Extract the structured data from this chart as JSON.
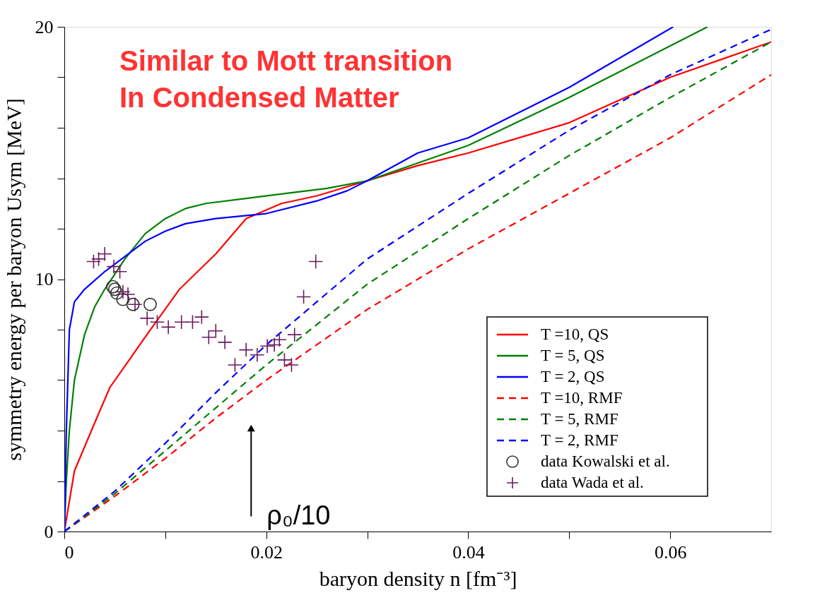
{
  "chart_data": {
    "type": "line",
    "xlabel": "baryon density n [fm⁻³]",
    "ylabel": "symmetry energy per baryon Usym  [MeV]",
    "xlim": [
      0,
      0.07
    ],
    "ylim": [
      0,
      20
    ],
    "xticks": [
      0,
      {
        "value": 0.01,
        "label": null
      },
      0.02,
      {
        "value": 0.03,
        "label": null
      },
      0.04,
      {
        "value": 0.05,
        "label": null
      },
      0.06
    ],
    "yticks": [
      0,
      {
        "value": 2,
        "label": null
      },
      {
        "value": 4,
        "label": null
      },
      {
        "value": 6,
        "label": null
      },
      {
        "value": 8,
        "label": null
      },
      10,
      {
        "value": 12,
        "label": null
      },
      {
        "value": 14,
        "label": null
      },
      {
        "value": 16,
        "label": null
      },
      {
        "value": 18,
        "label": null
      },
      20
    ],
    "grid": false,
    "legend": "bottom right",
    "annotations": [
      "Similar to Mott transition",
      "In Condensed Matter",
      {
        "text": "ρ₀/10",
        "x": 0.0185,
        "y": 4.1
      }
    ],
    "series": [
      {
        "name": "T =10, QS",
        "color": "#ff0000",
        "type": "line",
        "line_style": "solid",
        "x": [
          0,
          0.001,
          0.003,
          0.0045,
          0.008,
          0.0114,
          0.015,
          0.018,
          0.0215,
          0.025,
          0.03,
          0.035,
          0.04,
          0.05,
          0.06,
          0.07
        ],
        "values": [
          0,
          2.4,
          4.3,
          5.7,
          7.7,
          9.6,
          11.0,
          12.4,
          13.0,
          13.3,
          13.9,
          14.5,
          15.0,
          16.2,
          18.0,
          19.4
        ]
      },
      {
        "name": "T = 5, QS",
        "color": "#008000",
        "type": "line",
        "line_style": "solid",
        "x": [
          0,
          0.0002,
          0.0005,
          0.001,
          0.002,
          0.003,
          0.004,
          0.006,
          0.008,
          0.01,
          0.012,
          0.014,
          0.018,
          0.022,
          0.026,
          0.03,
          0.035,
          0.04,
          0.05,
          0.0637
        ],
        "values": [
          0,
          2,
          4,
          6,
          7.8,
          8.9,
          9.6,
          10.8,
          11.8,
          12.4,
          12.8,
          13.0,
          13.2,
          13.4,
          13.6,
          13.9,
          14.6,
          15.3,
          17.2,
          20
        ]
      },
      {
        "name": "T = 2, QS",
        "color": "#0000ff",
        "type": "line",
        "line_style": "solid",
        "x": [
          0,
          0.0002,
          0.0005,
          0.001,
          0.002,
          0.004,
          0.006,
          0.008,
          0.01,
          0.012,
          0.015,
          0.02,
          0.025,
          0.028,
          0.03,
          0.035,
          0.04,
          0.05,
          0.0603
        ],
        "values": [
          0,
          4,
          8,
          9.1,
          9.6,
          10.3,
          10.9,
          11.5,
          11.9,
          12.2,
          12.4,
          12.6,
          13.1,
          13.5,
          13.9,
          15.0,
          15.6,
          17.6,
          20
        ]
      },
      {
        "name": "T =10, RMF",
        "color": "#ff0000",
        "type": "line",
        "line_style": "dashed",
        "x": [
          0,
          0.005,
          0.01,
          0.015,
          0.02,
          0.025,
          0.03,
          0.04,
          0.05,
          0.06,
          0.07
        ],
        "values": [
          0,
          1.4,
          2.9,
          4.5,
          6.0,
          7.4,
          8.8,
          11.2,
          13.4,
          15.6,
          18.1
        ]
      },
      {
        "name": "T = 5, RMF",
        "color": "#008000",
        "type": "line",
        "line_style": "dashed",
        "x": [
          0,
          0.005,
          0.01,
          0.015,
          0.02,
          0.025,
          0.03,
          0.04,
          0.05,
          0.06,
          0.07
        ],
        "values": [
          0,
          1.5,
          3.2,
          4.9,
          6.6,
          8.2,
          9.8,
          12.4,
          14.9,
          17.2,
          19.4
        ]
      },
      {
        "name": "T = 2, RMF",
        "color": "#0000ff",
        "type": "line",
        "line_style": "dashed",
        "x": [
          0,
          0.005,
          0.01,
          0.015,
          0.02,
          0.025,
          0.03,
          0.04,
          0.05,
          0.06,
          0.07
        ],
        "values": [
          0,
          1.6,
          3.5,
          5.5,
          7.4,
          9.1,
          10.8,
          13.4,
          15.9,
          18.1,
          19.9
        ]
      },
      {
        "name": "data Kowalski et al.",
        "color": "#333333",
        "type": "scatter",
        "marker": "circle",
        "x": [
          0.0048,
          0.005,
          0.0052,
          0.0058,
          0.0068,
          0.0085
        ],
        "values": [
          9.7,
          9.6,
          9.45,
          9.2,
          9.0,
          9.0
        ]
      },
      {
        "name": "data Wada et al.",
        "color": "#6a1b5e",
        "type": "scatter",
        "marker": "cross",
        "x": [
          0.0029,
          0.0034,
          0.004,
          0.0049,
          0.0055,
          0.0058,
          0.0063,
          0.007,
          0.0082,
          0.0092,
          0.0103,
          0.0116,
          0.0127,
          0.0136,
          0.0143,
          0.015,
          0.0159,
          0.0169,
          0.018,
          0.0191,
          0.0201,
          0.0208,
          0.0213,
          0.0218,
          0.0225,
          0.0228,
          0.0237,
          0.0249
        ],
        "values": [
          10.7,
          10.8,
          11.0,
          10.5,
          10.3,
          9.5,
          9.4,
          9.0,
          8.45,
          8.3,
          8.1,
          8.3,
          8.3,
          8.5,
          7.7,
          7.95,
          7.5,
          6.6,
          7.2,
          7.0,
          7.35,
          7.4,
          7.6,
          6.8,
          6.6,
          7.8,
          9.3,
          10.7
        ]
      }
    ]
  }
}
